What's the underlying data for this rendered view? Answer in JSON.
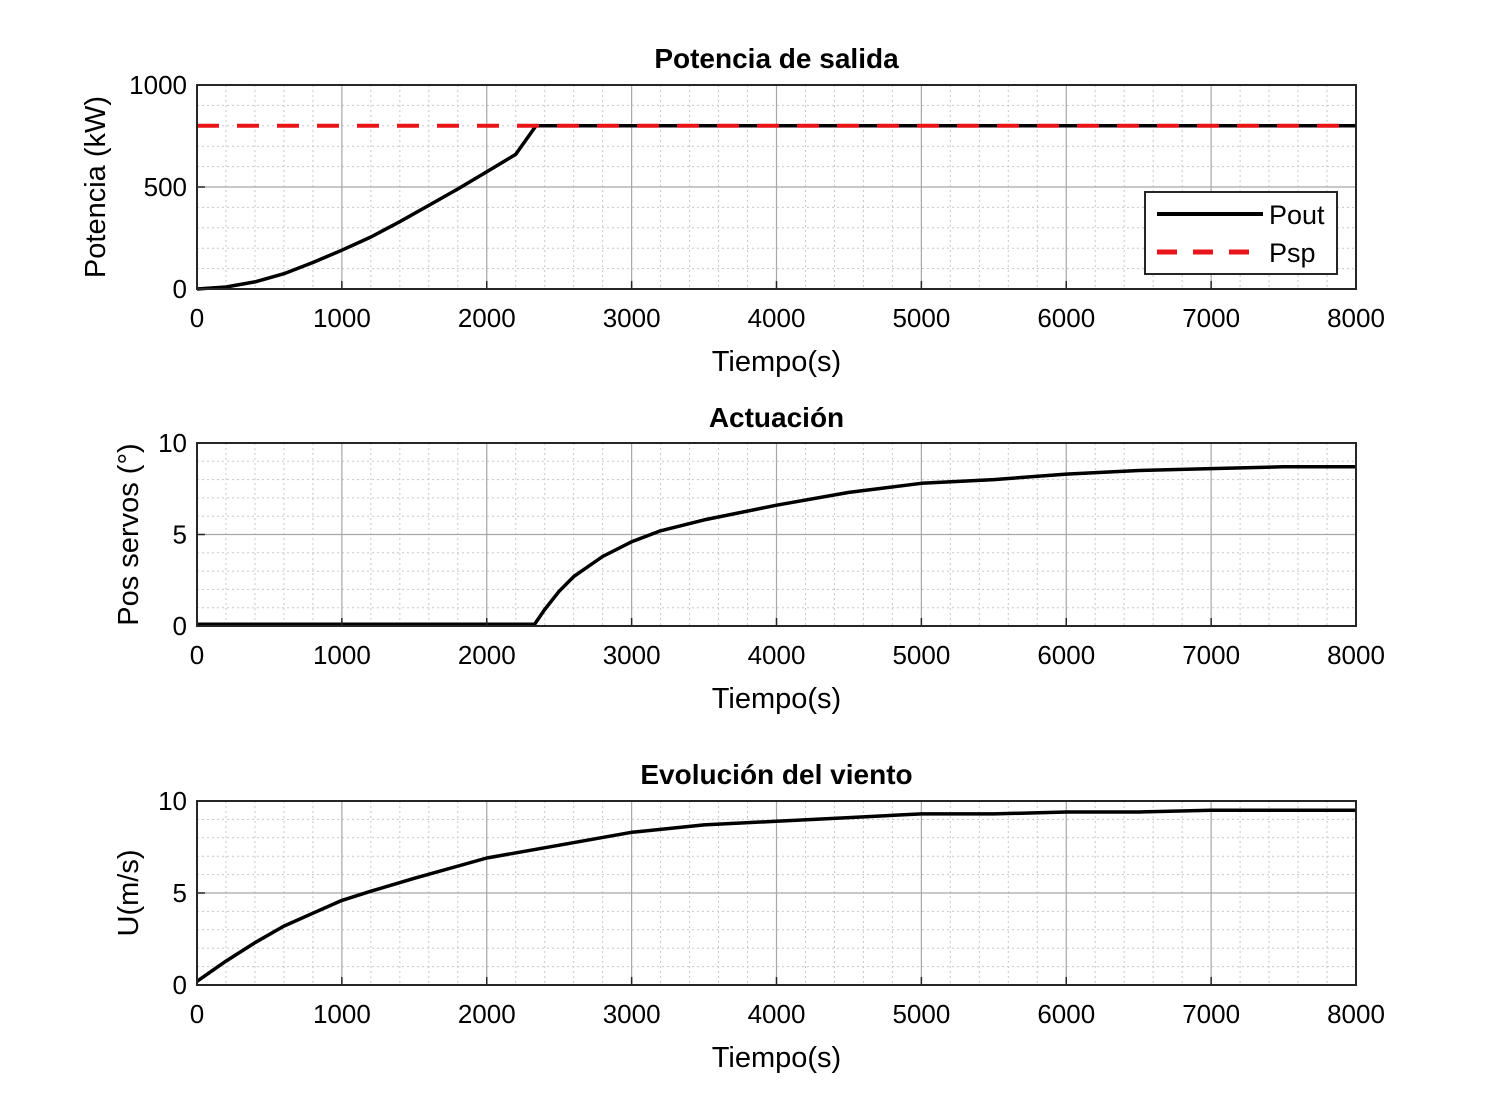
{
  "chart_data": [
    {
      "type": "line",
      "title": "Potencia de salida",
      "xlabel": "Tiempo(s)",
      "ylabel": "Potencia (kW)",
      "xlim": [
        0,
        8000
      ],
      "ylim": [
        0,
        1000
      ],
      "xticks": [
        0,
        1000,
        2000,
        3000,
        4000,
        5000,
        6000,
        7000,
        8000
      ],
      "yticks": [
        0,
        500,
        1000
      ],
      "grid": true,
      "minor_grid": true,
      "legend": "right",
      "series": [
        {
          "name": "Pout",
          "color": "#000000",
          "style": "solid",
          "x": [
            0,
            200,
            400,
            600,
            800,
            1000,
            1200,
            1400,
            1600,
            1800,
            2000,
            2200,
            2340,
            3000,
            4000,
            5000,
            6000,
            7000,
            8000
          ],
          "y": [
            0,
            10,
            35,
            75,
            130,
            190,
            255,
            330,
            410,
            490,
            575,
            660,
            800,
            800,
            800,
            800,
            800,
            800,
            800
          ]
        },
        {
          "name": "Psp",
          "color": "#e8141a",
          "style": "dashed",
          "x": [
            0,
            8000
          ],
          "y": [
            800,
            800
          ]
        }
      ]
    },
    {
      "type": "line",
      "title": "Actuación",
      "xlabel": "Tiempo(s)",
      "ylabel": "Pos servos (°)",
      "xlim": [
        0,
        8000
      ],
      "ylim": [
        0,
        10
      ],
      "xticks": [
        0,
        1000,
        2000,
        3000,
        4000,
        5000,
        6000,
        7000,
        8000
      ],
      "yticks": [
        0,
        5,
        10
      ],
      "grid": true,
      "minor_grid": true,
      "series": [
        {
          "color": "#000000",
          "style": "solid",
          "x": [
            0,
            500,
            1000,
            1500,
            2000,
            2330,
            2400,
            2500,
            2600,
            2800,
            3000,
            3200,
            3500,
            4000,
            4500,
            5000,
            5500,
            6000,
            6500,
            7000,
            7500,
            8000
          ],
          "y": [
            0.1,
            0.1,
            0.1,
            0.1,
            0.1,
            0.1,
            0.9,
            1.9,
            2.7,
            3.8,
            4.6,
            5.2,
            5.8,
            6.6,
            7.3,
            7.8,
            8.0,
            8.3,
            8.5,
            8.6,
            8.7,
            8.7
          ]
        }
      ]
    },
    {
      "type": "line",
      "title": "Evolución del viento",
      "xlabel": "Tiempo(s)",
      "ylabel": "U(m/s)",
      "xlim": [
        0,
        8000
      ],
      "ylim": [
        0,
        10
      ],
      "xticks": [
        0,
        1000,
        2000,
        3000,
        4000,
        5000,
        6000,
        7000,
        8000
      ],
      "yticks": [
        0,
        5,
        10
      ],
      "grid": true,
      "minor_grid": true,
      "series": [
        {
          "color": "#000000",
          "style": "solid",
          "x": [
            0,
            200,
            400,
            600,
            800,
            1000,
            1200,
            1500,
            2000,
            2500,
            3000,
            3500,
            4000,
            4500,
            5000,
            5500,
            6000,
            6500,
            7000,
            7500,
            8000
          ],
          "y": [
            0.2,
            1.3,
            2.3,
            3.2,
            3.9,
            4.6,
            5.1,
            5.8,
            6.9,
            7.6,
            8.3,
            8.7,
            8.9,
            9.1,
            9.3,
            9.3,
            9.4,
            9.4,
            9.5,
            9.5,
            9.5
          ]
        }
      ]
    }
  ]
}
